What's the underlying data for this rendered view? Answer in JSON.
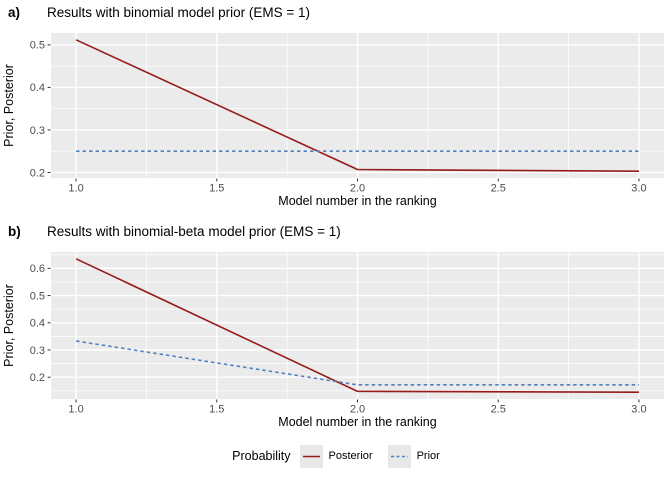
{
  "colors": {
    "panel_bg": "#EBEBEB",
    "grid": "#FFFFFF",
    "tick": "#333333",
    "tick_label": "#4D4D4D",
    "posterior": "#961B1B",
    "prior": "#5181BE",
    "legend_key_bg": "#E8E8E8"
  },
  "legend": {
    "title": "Probability",
    "entries": [
      {
        "label": "Posterior",
        "style": "solid",
        "color": "#961B1B"
      },
      {
        "label": "Prior",
        "style": "dashed",
        "color": "#5181BE"
      }
    ]
  },
  "chart_data": [
    {
      "type": "line",
      "tag": "a)",
      "title": "Results with binomial model prior (EMS = 1)",
      "xlabel": "Model number in the ranking",
      "ylabel": "Prior, Posterior",
      "x": [
        1,
        2,
        3
      ],
      "series": [
        {
          "name": "Posterior",
          "style": "solid",
          "color": "#961B1B",
          "values": [
            0.512,
            0.207,
            0.203
          ]
        },
        {
          "name": "Prior",
          "style": "dashed",
          "color": "#5181BE",
          "values": [
            0.25,
            0.25,
            0.25
          ]
        }
      ],
      "xticks": [
        1.0,
        1.5,
        2.0,
        2.5,
        3.0
      ],
      "yticks": [
        0.2,
        0.3,
        0.4,
        0.5
      ],
      "xlim": [
        0.911,
        3.089
      ],
      "ylim": [
        0.187,
        0.528
      ],
      "grid": true,
      "legend_position": "bottom"
    },
    {
      "type": "line",
      "tag": "b)",
      "title": "Results with binomial-beta model prior (EMS = 1)",
      "xlabel": "Model number in the ranking",
      "ylabel": "Prior, Posterior",
      "x": [
        1,
        2,
        3
      ],
      "series": [
        {
          "name": "Posterior",
          "style": "solid",
          "color": "#961B1B",
          "values": [
            0.635,
            0.148,
            0.145
          ]
        },
        {
          "name": "Prior",
          "style": "dashed",
          "color": "#5181BE",
          "values": [
            0.333,
            0.172,
            0.172
          ]
        }
      ],
      "xticks": [
        1.0,
        1.5,
        2.0,
        2.5,
        3.0
      ],
      "yticks": [
        0.2,
        0.3,
        0.4,
        0.5,
        0.6
      ],
      "xlim": [
        0.911,
        3.089
      ],
      "ylim": [
        0.12,
        0.66
      ],
      "grid": true,
      "legend_position": "bottom"
    }
  ]
}
